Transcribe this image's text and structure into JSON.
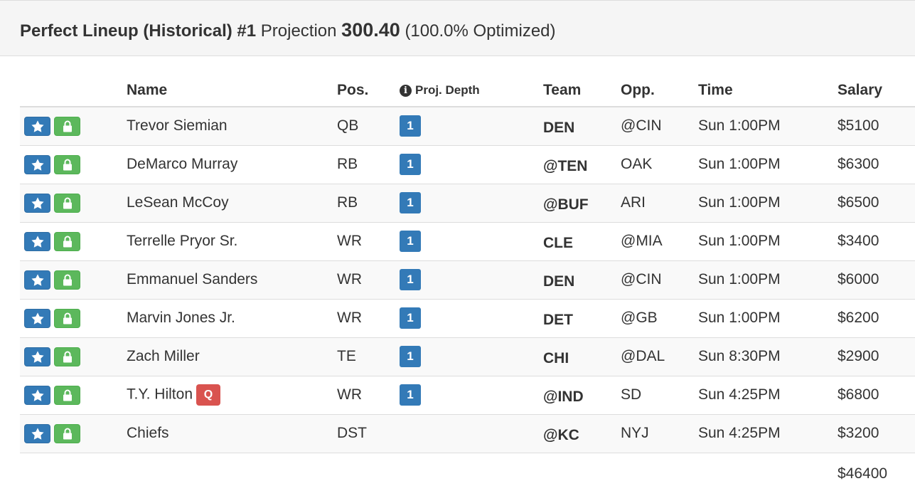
{
  "header": {
    "title_bold": "Perfect Lineup (Historical) #1",
    "projection_label": "Projection",
    "projection_value": "300.40",
    "optimized_text": "(100.0% Optimized)"
  },
  "columns": {
    "name": "Name",
    "pos": "Pos.",
    "depth": "Proj. Depth",
    "team": "Team",
    "opp": "Opp.",
    "time": "Time",
    "salary": "Salary"
  },
  "players": [
    {
      "name": "Trevor Siemian",
      "pos": "QB",
      "depth": "1",
      "team": "DEN",
      "opp": "@CIN",
      "time": "Sun 1:00PM",
      "salary": "$5100",
      "injury": ""
    },
    {
      "name": "DeMarco Murray",
      "pos": "RB",
      "depth": "1",
      "team": "@TEN",
      "opp": "OAK",
      "time": "Sun 1:00PM",
      "salary": "$6300",
      "injury": ""
    },
    {
      "name": "LeSean McCoy",
      "pos": "RB",
      "depth": "1",
      "team": "@BUF",
      "opp": "ARI",
      "time": "Sun 1:00PM",
      "salary": "$6500",
      "injury": ""
    },
    {
      "name": "Terrelle Pryor Sr.",
      "pos": "WR",
      "depth": "1",
      "team": "CLE",
      "opp": "@MIA",
      "time": "Sun 1:00PM",
      "salary": "$3400",
      "injury": ""
    },
    {
      "name": "Emmanuel Sanders",
      "pos": "WR",
      "depth": "1",
      "team": "DEN",
      "opp": "@CIN",
      "time": "Sun 1:00PM",
      "salary": "$6000",
      "injury": ""
    },
    {
      "name": "Marvin Jones Jr.",
      "pos": "WR",
      "depth": "1",
      "team": "DET",
      "opp": "@GB",
      "time": "Sun 1:00PM",
      "salary": "$6200",
      "injury": ""
    },
    {
      "name": "Zach Miller",
      "pos": "TE",
      "depth": "1",
      "team": "CHI",
      "opp": "@DAL",
      "time": "Sun 8:30PM",
      "salary": "$2900",
      "injury": ""
    },
    {
      "name": "T.Y. Hilton",
      "pos": "WR",
      "depth": "1",
      "team": "@IND",
      "opp": "SD",
      "time": "Sun 4:25PM",
      "salary": "$6800",
      "injury": "Q"
    },
    {
      "name": "Chiefs",
      "pos": "DST",
      "depth": "",
      "team": "@KC",
      "opp": "NYJ",
      "time": "Sun 4:25PM",
      "salary": "$3200",
      "injury": ""
    }
  ],
  "total_salary": "$46400",
  "icons": {
    "star": "star-icon",
    "lock": "lock-icon",
    "info": "info-circle-icon"
  },
  "colors": {
    "primary": "#337ab7",
    "success": "#5cb85c",
    "danger": "#d9534f"
  }
}
